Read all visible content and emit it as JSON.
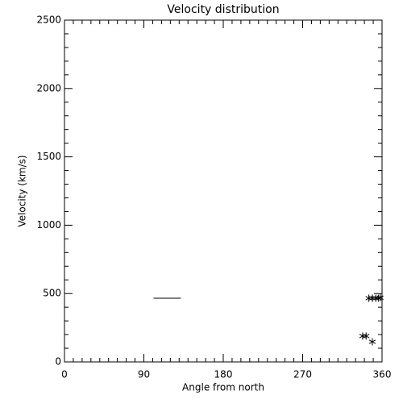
{
  "chart_data": {
    "type": "scatter",
    "title": "Velocity distribution",
    "x_label": "Angle from north",
    "y_label": "Velocity (km/s)",
    "xlim": [
      0,
      360
    ],
    "xticks": [
      0,
      90,
      180,
      270,
      360
    ],
    "x_minor_ticks": 9,
    "ylim": [
      0,
      2500
    ],
    "yticks": [
      0,
      500,
      1000,
      1500,
      2000,
      2500
    ],
    "y_minor_ticks": 5,
    "color": "#000000",
    "series": [
      {
        "x": [
          345,
          349,
          353,
          356,
          358,
          338,
          342,
          349
        ],
        "values": [
          466,
          466,
          466,
          466,
          470,
          189,
          189,
          147
        ]
      }
    ],
    "segment": {
      "x": [
        101,
        132
      ],
      "values": [
        466,
        466
      ]
    }
  }
}
